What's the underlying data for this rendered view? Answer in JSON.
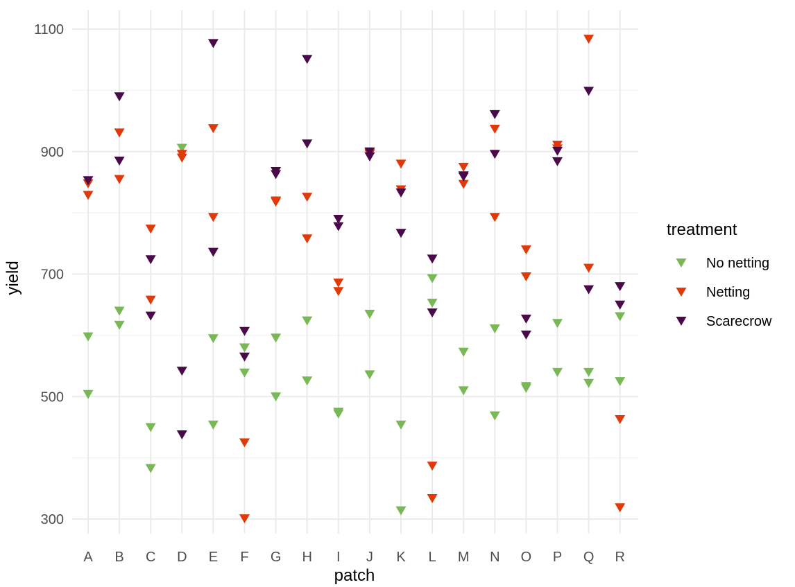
{
  "chart_data": {
    "type": "scatter",
    "xlabel": "patch",
    "ylabel": "yield",
    "categories": [
      "A",
      "B",
      "C",
      "D",
      "E",
      "F",
      "G",
      "H",
      "I",
      "J",
      "K",
      "L",
      "M",
      "N",
      "O",
      "P",
      "Q",
      "R"
    ],
    "ylim": [
      270,
      1110
    ],
    "yticks": [
      300,
      500,
      700,
      900,
      1100
    ],
    "grid": true,
    "marker": "down-triangle",
    "legend": {
      "title": "treatment",
      "position": "right"
    },
    "series": [
      {
        "name": "No netting",
        "color": "#78B856",
        "points": [
          [
            "A",
            598
          ],
          [
            "A",
            504
          ],
          [
            "B",
            640
          ],
          [
            "B",
            617
          ],
          [
            "C",
            450
          ],
          [
            "C",
            383
          ],
          [
            "D",
            906
          ],
          [
            "E",
            595
          ],
          [
            "E",
            454
          ],
          [
            "F",
            580
          ],
          [
            "F",
            539
          ],
          [
            "G",
            596
          ],
          [
            "G",
            500
          ],
          [
            "H",
            624
          ],
          [
            "H",
            526
          ],
          [
            "I",
            475
          ],
          [
            "I",
            472
          ],
          [
            "J",
            635
          ],
          [
            "J",
            536
          ],
          [
            "K",
            454
          ],
          [
            "K",
            314
          ],
          [
            "L",
            693
          ],
          [
            "L",
            653
          ],
          [
            "M",
            573
          ],
          [
            "M",
            510
          ],
          [
            "N",
            611
          ],
          [
            "N",
            469
          ],
          [
            "O",
            517
          ],
          [
            "O",
            514
          ],
          [
            "P",
            620
          ],
          [
            "P",
            540
          ],
          [
            "Q",
            540
          ],
          [
            "Q",
            522
          ],
          [
            "R",
            631
          ],
          [
            "R",
            525
          ]
        ]
      },
      {
        "name": "Netting",
        "color": "#E03A0B",
        "points": [
          [
            "A",
            848
          ],
          [
            "A",
            829
          ],
          [
            "B",
            931
          ],
          [
            "B",
            855
          ],
          [
            "C",
            774
          ],
          [
            "C",
            658
          ],
          [
            "D",
            896
          ],
          [
            "D",
            890
          ],
          [
            "E",
            938
          ],
          [
            "E",
            793
          ],
          [
            "F",
            425
          ],
          [
            "F",
            301
          ],
          [
            "G",
            820
          ],
          [
            "G",
            818
          ],
          [
            "H",
            826
          ],
          [
            "H",
            758
          ],
          [
            "I",
            686
          ],
          [
            "I",
            672
          ],
          [
            "J",
            898
          ],
          [
            "J",
            896
          ],
          [
            "K",
            880
          ],
          [
            "K",
            838
          ],
          [
            "L",
            387
          ],
          [
            "L",
            334
          ],
          [
            "M",
            875
          ],
          [
            "M",
            847
          ],
          [
            "N",
            937
          ],
          [
            "N",
            793
          ],
          [
            "O",
            740
          ],
          [
            "O",
            696
          ],
          [
            "P",
            911
          ],
          [
            "P",
            905
          ],
          [
            "Q",
            1084
          ],
          [
            "Q",
            710
          ],
          [
            "R",
            463
          ],
          [
            "R",
            319
          ]
        ]
      },
      {
        "name": "Scarecrow",
        "color": "#4A0A4A",
        "points": [
          [
            "A",
            853
          ],
          [
            "B",
            990
          ],
          [
            "B",
            885
          ],
          [
            "C",
            724
          ],
          [
            "C",
            632
          ],
          [
            "D",
            542
          ],
          [
            "D",
            438
          ],
          [
            "E",
            1077
          ],
          [
            "E",
            736
          ],
          [
            "F",
            607
          ],
          [
            "F",
            565
          ],
          [
            "G",
            868
          ],
          [
            "G",
            863
          ],
          [
            "H",
            1051
          ],
          [
            "H",
            913
          ],
          [
            "I",
            790
          ],
          [
            "I",
            778
          ],
          [
            "J",
            900
          ],
          [
            "J",
            892
          ],
          [
            "K",
            833
          ],
          [
            "K",
            767
          ],
          [
            "L",
            725
          ],
          [
            "L",
            637
          ],
          [
            "M",
            861
          ],
          [
            "M",
            859
          ],
          [
            "N",
            961
          ],
          [
            "N",
            896
          ],
          [
            "O",
            627
          ],
          [
            "O",
            601
          ],
          [
            "P",
            901
          ],
          [
            "P",
            884
          ],
          [
            "Q",
            999
          ],
          [
            "Q",
            675
          ],
          [
            "R",
            680
          ],
          [
            "R",
            650
          ]
        ]
      }
    ]
  }
}
